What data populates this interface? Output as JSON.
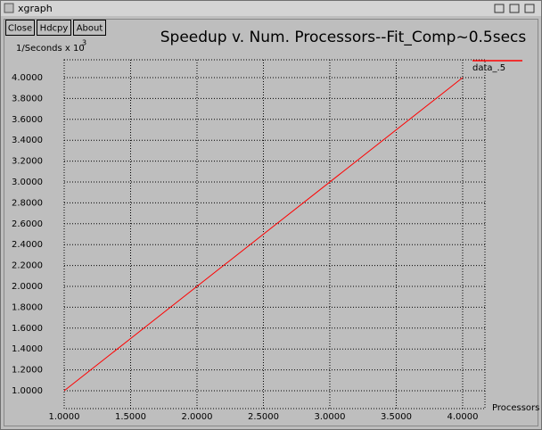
{
  "window": {
    "title": "xgraph"
  },
  "buttons": [
    "Close",
    "Hdcpy",
    "About"
  ],
  "chart_data": {
    "type": "line",
    "title": "Speedup v. Num. Processors--Fit_Comp~0.5secs",
    "ylabel": "1/Seconds x 10",
    "ylabel_exponent": "3",
    "xlabel": "Processors",
    "series": [
      {
        "name": "data_.5",
        "color": "#ff0000",
        "x": [
          1,
          4
        ],
        "values": [
          1,
          4
        ]
      }
    ],
    "xlim": [
      1,
      4.168
    ],
    "ylim": [
      0.829,
      4.171
    ],
    "xticks": [
      {
        "value": 1,
        "label": "1.0000"
      },
      {
        "value": 1.5,
        "label": "1.5000"
      },
      {
        "value": 2,
        "label": "2.0000"
      },
      {
        "value": 2.5,
        "label": "2.5000"
      },
      {
        "value": 3,
        "label": "3.0000"
      },
      {
        "value": 3.5,
        "label": "3.5000"
      },
      {
        "value": 4,
        "label": "4.0000"
      }
    ],
    "yticks": [
      {
        "value": 1,
        "label": "1.0000"
      },
      {
        "value": 1.2,
        "label": "1.2000"
      },
      {
        "value": 1.4,
        "label": "1.4000"
      },
      {
        "value": 1.6,
        "label": "1.6000"
      },
      {
        "value": 1.8,
        "label": "1.8000"
      },
      {
        "value": 2,
        "label": "2.0000"
      },
      {
        "value": 2.2,
        "label": "2.2000"
      },
      {
        "value": 2.4,
        "label": "2.4000"
      },
      {
        "value": 2.6,
        "label": "2.6000"
      },
      {
        "value": 2.8,
        "label": "2.8000"
      },
      {
        "value": 3,
        "label": "3.0000"
      },
      {
        "value": 3.2,
        "label": "3.2000"
      },
      {
        "value": 3.4,
        "label": "3.4000"
      },
      {
        "value": 3.6,
        "label": "3.6000"
      },
      {
        "value": 3.8,
        "label": "3.8000"
      },
      {
        "value": 4,
        "label": "4.0000"
      }
    ],
    "grid": true
  }
}
